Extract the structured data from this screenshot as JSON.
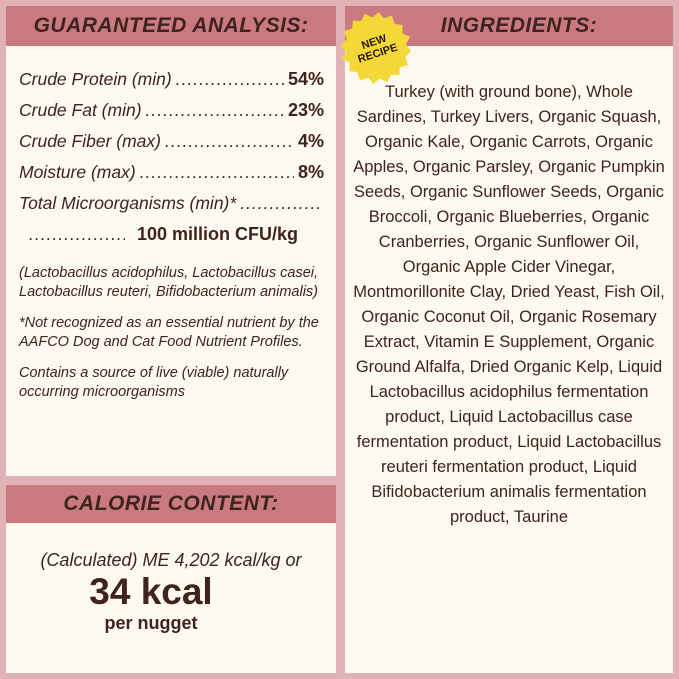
{
  "analysis": {
    "title": "GUARANTEED ANALYSIS:",
    "rows": [
      {
        "label": "Crude Protein (min)",
        "value": "54%"
      },
      {
        "label": "Crude Fat (min)",
        "value": "23%"
      },
      {
        "label": "Crude Fiber (max)",
        "value": "4%"
      },
      {
        "label": "Moisture (max)",
        "value": "8%"
      },
      {
        "label": "Total Microorganisms (min)*",
        "value": ""
      }
    ],
    "micro_value": "100 million CFU/kg",
    "notes": [
      "(Lactobacillus acidophilus, Lactobacillus casei, Lactobacillus reuteri, Bifidobacterium animalis)",
      "*Not recognized as an essential nutrient by the AAFCO Dog and Cat Food Nutrient Profiles.",
      "Contains a source of live (viable) naturally occurring microorganisms"
    ]
  },
  "calorie": {
    "title": "CALORIE CONTENT:",
    "line1": "(Calculated) ME 4,202 kcal/kg or",
    "big": "34 kcal",
    "small": "per nugget"
  },
  "ingredients": {
    "title": "INGREDIENTS:",
    "badge": [
      "NEW",
      "RECIPE"
    ],
    "text": "Turkey (with ground bone), Whole Sardines, Turkey Livers, Organic Squash, Organic Kale, Organic Carrots, Organic Apples, Organic Parsley, Organic Pumpkin Seeds, Organic Sunflower Seeds, Organic Broccoli, Organic Blueberries, Organic Cranberries, Organic Sunflower Oil, Organic Apple Cider Vinegar, Montmorillonite Clay, Dried Yeast, Fish Oil, Organic Coconut Oil, Organic Rosemary Extract, Vitamin E Supplement, Organic Ground Alfalfa, Dried Organic Kelp, Liquid Lactobacillus acidophilus fermentation product, Liquid Lactobacillus case fermentation product, Liquid Lactobacillus reuteri fermentation product, Liquid Bifidobacterium animalis fermentation product, Taurine"
  },
  "colors": {
    "background": "#e2b3b6",
    "header": "#c97a80",
    "panel": "#fdf9ef",
    "text": "#3f231f",
    "badge": "#f4d83a"
  }
}
